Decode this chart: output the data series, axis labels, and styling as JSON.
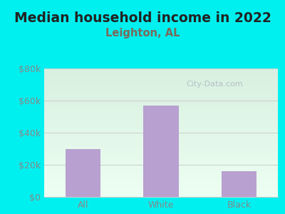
{
  "title": "Median household income in 2022",
  "subtitle": "Leighton, AL",
  "categories": [
    "All",
    "White",
    "Black"
  ],
  "values": [
    30000,
    57000,
    16000
  ],
  "bar_color": "#b8a0d0",
  "title_fontsize": 13.5,
  "subtitle_fontsize": 10.5,
  "ylim": [
    0,
    80000
  ],
  "yticks": [
    0,
    20000,
    40000,
    60000,
    80000
  ],
  "ytick_labels": [
    "$0",
    "$20k",
    "$40k",
    "$60k",
    "$80k"
  ],
  "bg_outer": "#00f0f0",
  "bg_grad_top": "#d8f0e0",
  "bg_grad_bottom": "#edfff2",
  "watermark": "City-Data.com",
  "title_color": "#222222",
  "subtitle_color": "#7a6a5a",
  "tick_color": "#888888",
  "grid_color": "#cccccc"
}
